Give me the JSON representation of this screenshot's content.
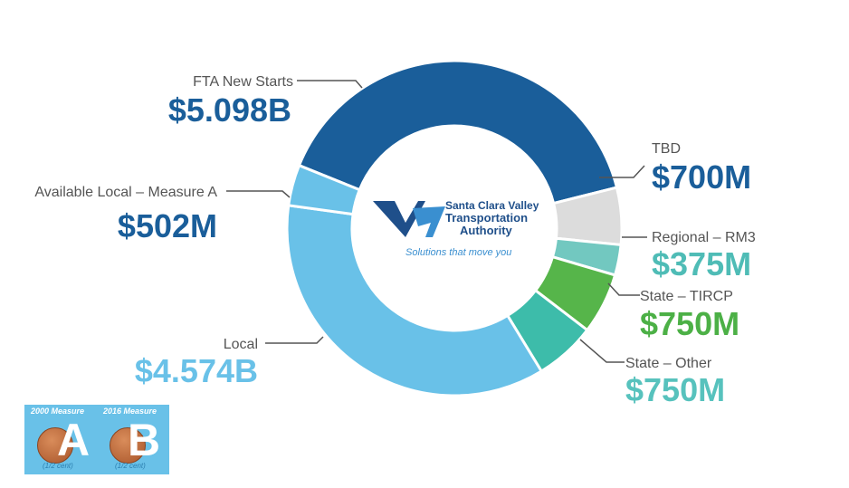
{
  "chart_data": {
    "type": "pie",
    "style": "donut",
    "slices": [
      {
        "label": "FTA New Starts",
        "display": "$5.098B",
        "value": 5098,
        "color": "#1a5e9a",
        "label_color": "#1a5e9a"
      },
      {
        "label": "TBD",
        "display": "$700M",
        "value": 700,
        "color": "#dcdcdc",
        "label_color": "#1a5e9a"
      },
      {
        "label": "Regional – RM3",
        "display": "$375M",
        "value": 375,
        "color": "#72c8c0",
        "label_color": "#4fbcb6"
      },
      {
        "label": "State – TIRCP",
        "display": "$750M",
        "value": 750,
        "color": "#56b54a",
        "label_color": "#4cb046"
      },
      {
        "label": "State – Other",
        "display": "$750M",
        "value": 750,
        "color": "#3dbcaa",
        "label_color": "#57c2bd"
      },
      {
        "label": "Local",
        "display": "$4.574B",
        "value": 4574,
        "color": "#69c1e8",
        "label_color": "#69c1e8"
      },
      {
        "label": "Available Local – Measure A",
        "display": "$502M",
        "value": 502,
        "color": "#69c1e8",
        "label_color": "#1a5e9a"
      }
    ]
  },
  "logo": {
    "line1": "Santa Clara Valley",
    "line2": "Transportation",
    "line3": "Authority",
    "tagline": "Solutions that move you"
  },
  "measures": {
    "a_title": "2000 Measure",
    "a_letter": "A",
    "a_note": "(1/2 cent)",
    "b_title": "2016 Measure",
    "b_letter": "B",
    "b_note": "(1/2 cent)"
  }
}
